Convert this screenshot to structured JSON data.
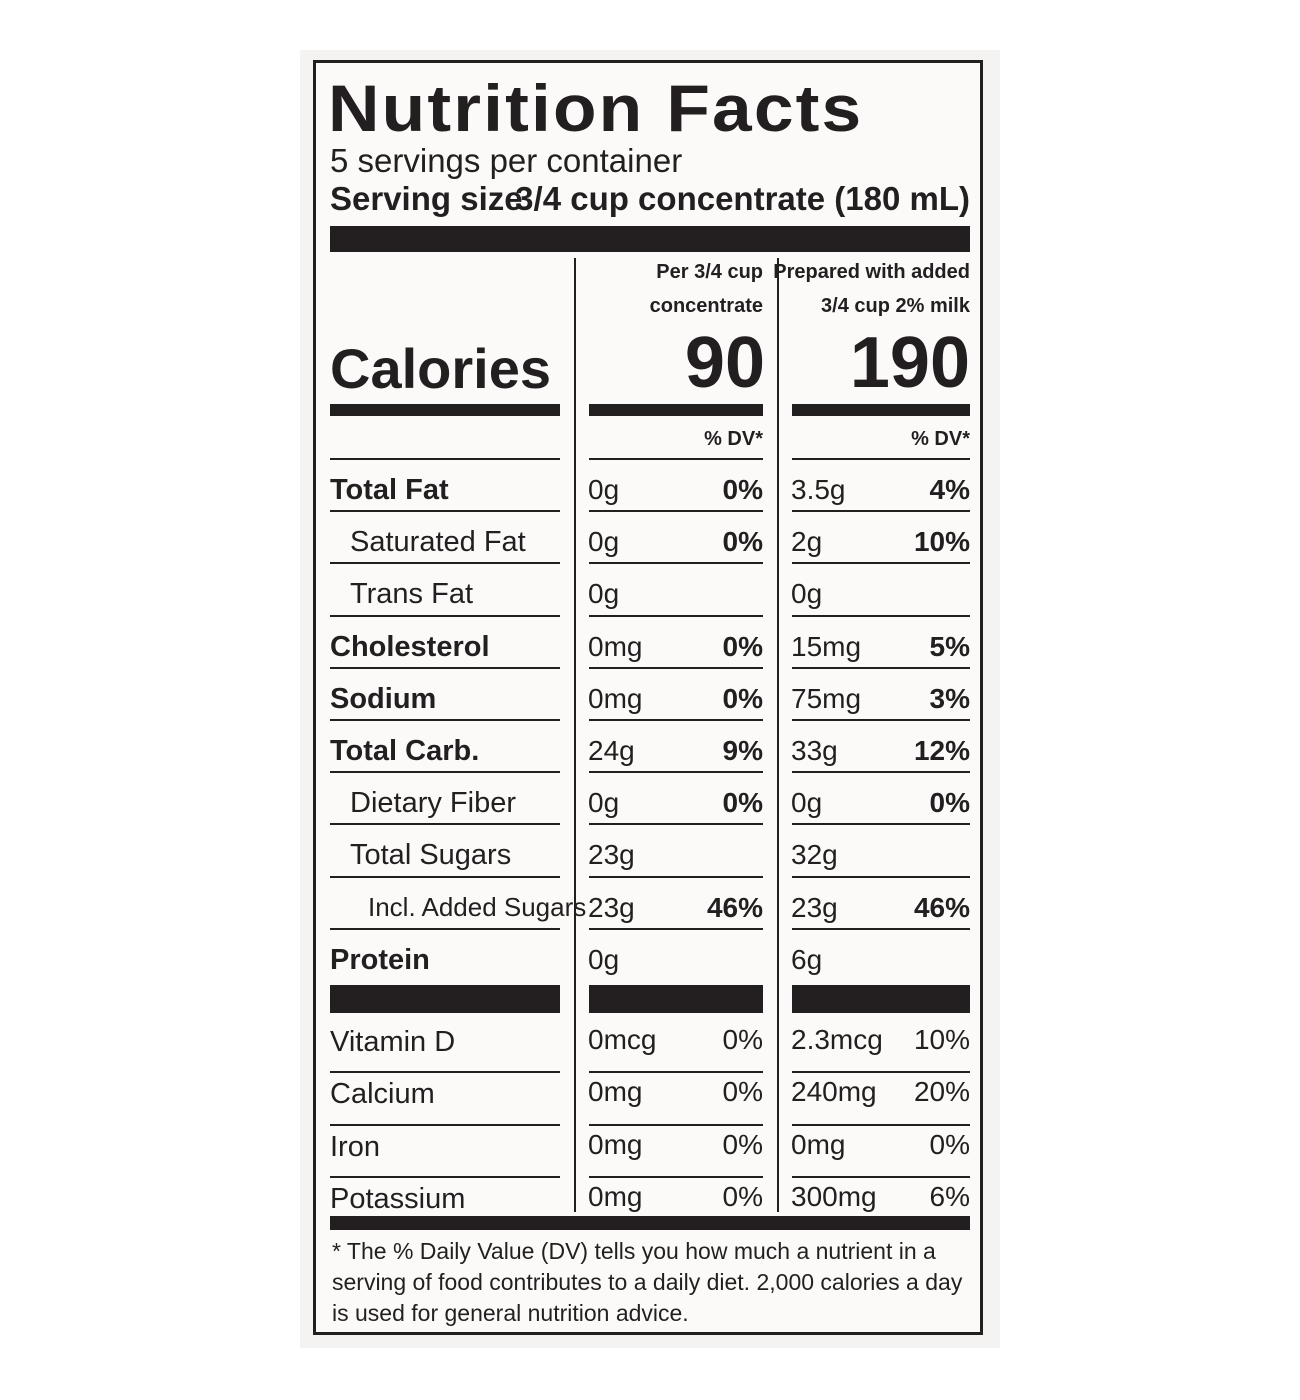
{
  "title": "Nutrition Facts",
  "servings_per_container": "5 servings per container",
  "serving_size_label": "Serving size",
  "serving_size_value": "3/4 cup concentrate (180 mL)",
  "columns": [
    {
      "header_line1": "Per 3/4 cup",
      "header_line2": "concentrate",
      "calories": "90",
      "dv_header": "% DV*"
    },
    {
      "header_line1": "Prepared with added",
      "header_line2": "3/4 cup 2% milk",
      "calories": "190",
      "dv_header": "% DV*"
    }
  ],
  "calories_label": "Calories",
  "nutrients": [
    {
      "name": "Total Fat",
      "style": "bold",
      "c1_amount": "0g",
      "c1_dv": "0%",
      "c2_amount": "3.5g",
      "c2_dv": "4%"
    },
    {
      "name": "Saturated Fat",
      "style": "indent",
      "c1_amount": "0g",
      "c1_dv": "0%",
      "c2_amount": "2g",
      "c2_dv": "10%"
    },
    {
      "name": "Trans Fat",
      "style": "indent",
      "c1_amount": "0g",
      "c1_dv": "",
      "c2_amount": "0g",
      "c2_dv": ""
    },
    {
      "name": "Cholesterol",
      "style": "bold",
      "c1_amount": "0mg",
      "c1_dv": "0%",
      "c2_amount": "15mg",
      "c2_dv": "5%"
    },
    {
      "name": "Sodium",
      "style": "bold",
      "c1_amount": "0mg",
      "c1_dv": "0%",
      "c2_amount": "75mg",
      "c2_dv": "3%"
    },
    {
      "name": "Total Carb.",
      "style": "bold",
      "c1_amount": "24g",
      "c1_dv": "9%",
      "c2_amount": "33g",
      "c2_dv": "12%"
    },
    {
      "name": "Dietary Fiber",
      "style": "indent",
      "c1_amount": "0g",
      "c1_dv": "0%",
      "c2_amount": "0g",
      "c2_dv": "0%"
    },
    {
      "name": "Total Sugars",
      "style": "indent",
      "c1_amount": "23g",
      "c1_dv": "",
      "c2_amount": "32g",
      "c2_dv": ""
    },
    {
      "name": "Incl. Added Sugars",
      "style": "indent2",
      "c1_amount": "23g",
      "c1_dv": "46%",
      "c2_amount": "23g",
      "c2_dv": "46%"
    },
    {
      "name": "Protein",
      "style": "bold",
      "c1_amount": "0g",
      "c1_dv": "",
      "c2_amount": "6g",
      "c2_dv": ""
    }
  ],
  "vitamins": [
    {
      "name": "Vitamin D",
      "c1_amount": "0mcg",
      "c1_dv": "0%",
      "c2_amount": "2.3mcg",
      "c2_dv": "10%"
    },
    {
      "name": "Calcium",
      "c1_amount": "0mg",
      "c1_dv": "0%",
      "c2_amount": "240mg",
      "c2_dv": "20%"
    },
    {
      "name": "Iron",
      "c1_amount": "0mg",
      "c1_dv": "0%",
      "c2_amount": "0mg",
      "c2_dv": "0%"
    },
    {
      "name": "Potassium",
      "c1_amount": "0mg",
      "c1_dv": "0%",
      "c2_amount": "300mg",
      "c2_dv": "6%"
    }
  ],
  "footnote": "* The % Daily Value (DV) tells you how much a nutrient in a serving of food contributes to a daily diet. 2,000 calories a day is used for general nutrition advice."
}
